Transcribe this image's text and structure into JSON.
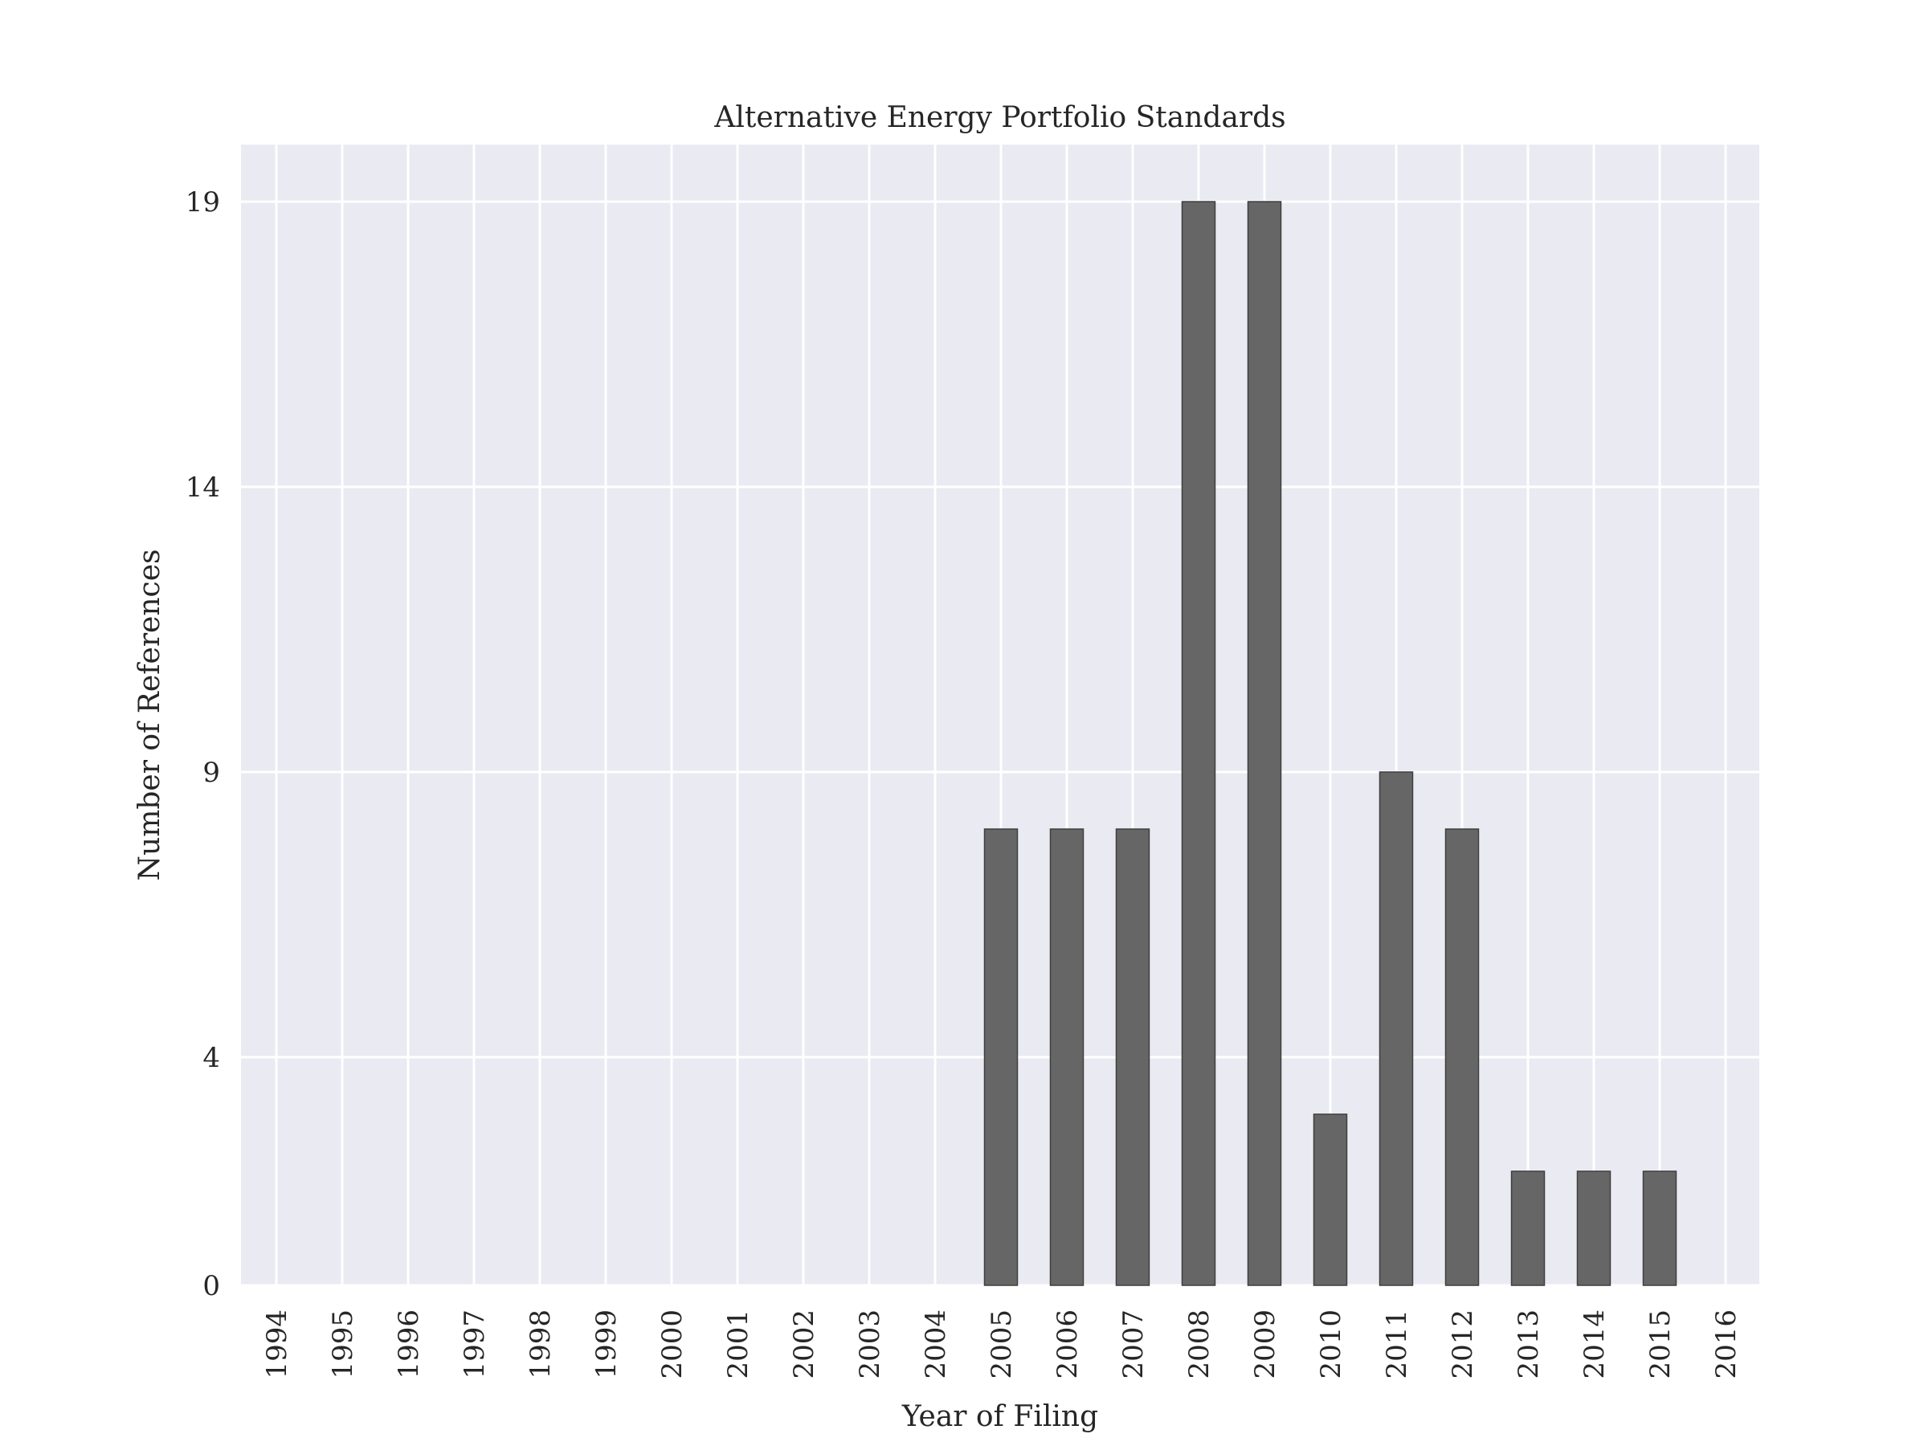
{
  "chart_data": {
    "type": "bar",
    "title": "Alternative Energy Portfolio Standards",
    "xlabel": "Year of Filing",
    "ylabel": "Number of References",
    "categories": [
      "1994",
      "1995",
      "1996",
      "1997",
      "1998",
      "1999",
      "2000",
      "2001",
      "2002",
      "2003",
      "2004",
      "2005",
      "2006",
      "2007",
      "2008",
      "2009",
      "2010",
      "2011",
      "2012",
      "2013",
      "2014",
      "2015",
      "2016"
    ],
    "values": [
      0,
      0,
      0,
      0,
      0,
      0,
      0,
      0,
      0,
      0,
      0,
      8,
      8,
      8,
      19,
      19,
      3,
      9,
      8,
      2,
      2,
      2,
      0
    ],
    "yticks": [
      0,
      4,
      9,
      14,
      19
    ],
    "ylim": [
      0,
      20
    ],
    "grid": true,
    "colors": {
      "background": "#eaeaf2",
      "grid": "#ffffff",
      "bar": "#666666",
      "bar_edge": "#3f3f3f",
      "text": "#262626"
    }
  }
}
